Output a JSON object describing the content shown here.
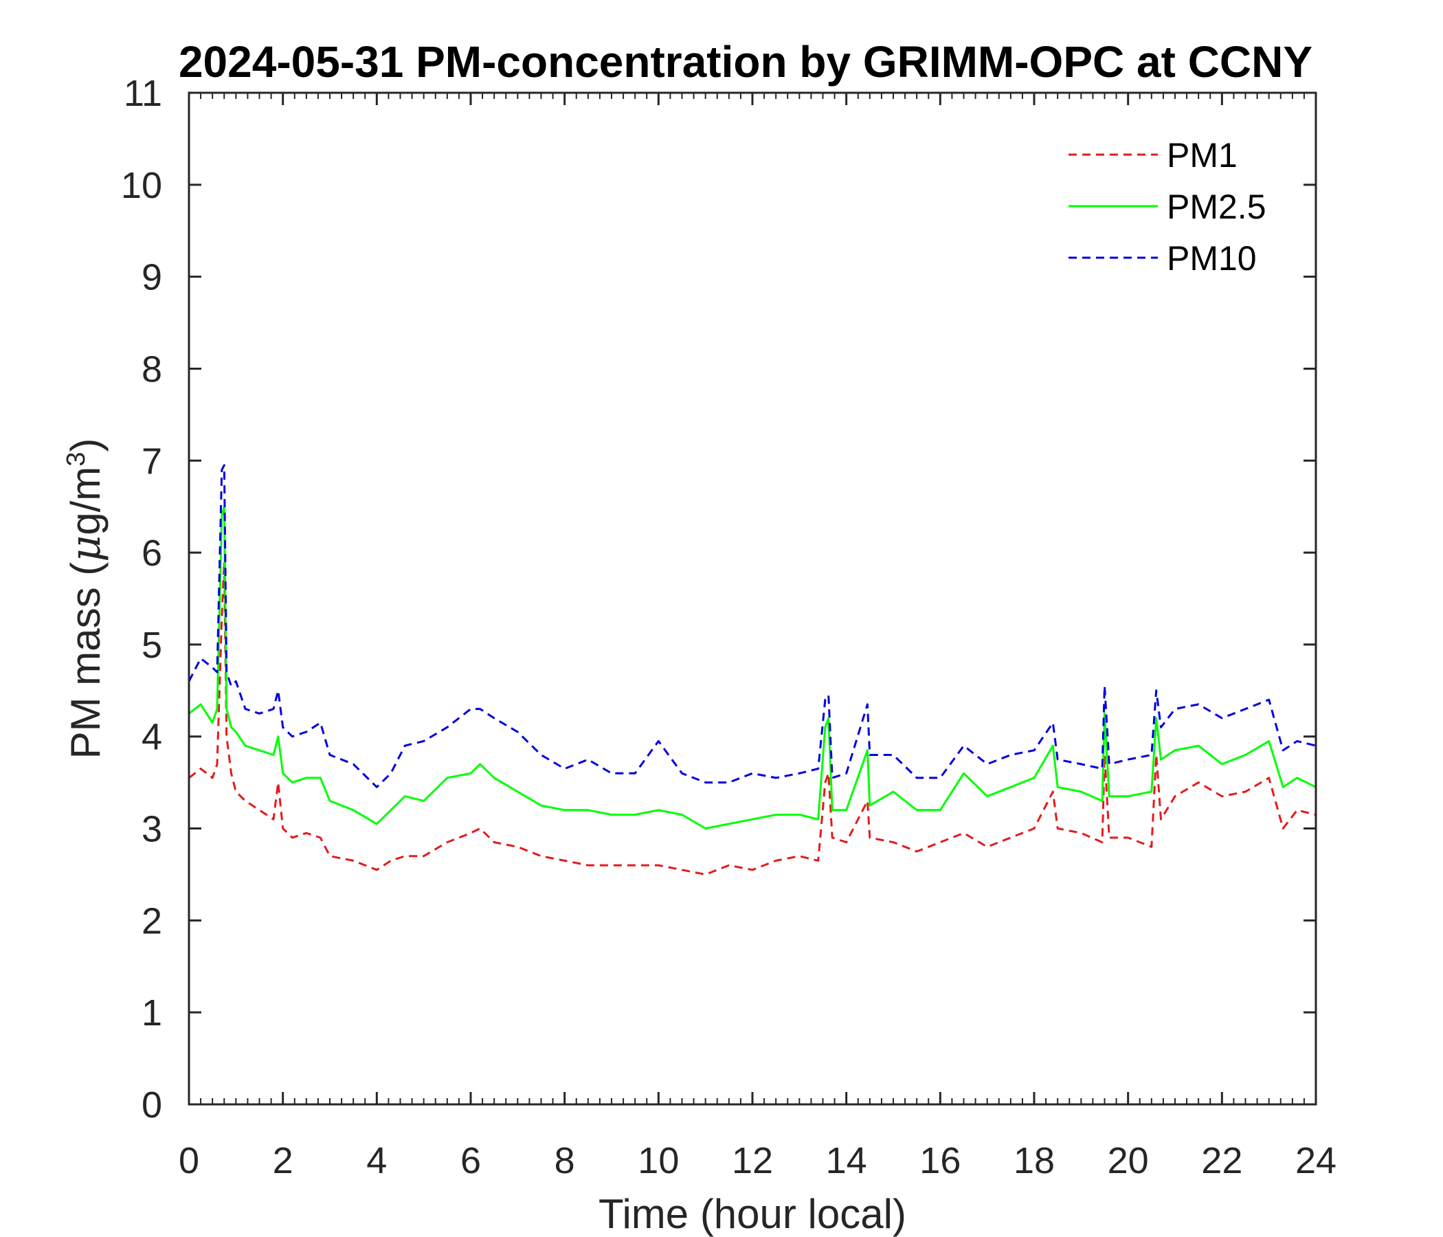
{
  "chart_data": {
    "type": "line",
    "title": "2024-05-31 PM-concentration by GRIMM-OPC at CCNY",
    "xlabel": "Time (hour local)",
    "ylabel_main": "PM mass (",
    "ylabel_mu": "μ",
    "ylabel_unit": "g/m",
    "ylabel_sup": "3",
    "ylabel_close": ")",
    "xlim": [
      0,
      24
    ],
    "ylim": [
      0,
      11
    ],
    "xticks": [
      "0",
      "2",
      "4",
      "6",
      "8",
      "10",
      "12",
      "14",
      "16",
      "18",
      "20",
      "22",
      "24"
    ],
    "yticks": [
      "0",
      "1",
      "2",
      "3",
      "4",
      "5",
      "6",
      "7",
      "8",
      "9",
      "10",
      "11"
    ],
    "grid": false,
    "legend_position": "top-right",
    "series": [
      {
        "name": "PM1",
        "color": "#e31a1c",
        "style": "dashed",
        "x": [
          0.0,
          0.25,
          0.5,
          0.6,
          0.7,
          0.75,
          0.8,
          0.9,
          1.0,
          1.2,
          1.5,
          1.8,
          1.9,
          2.0,
          2.2,
          2.5,
          2.8,
          3.0,
          3.5,
          4.0,
          4.3,
          4.6,
          5.0,
          5.5,
          6.0,
          6.2,
          6.5,
          7.0,
          7.5,
          8.0,
          8.5,
          9.0,
          9.5,
          10.0,
          10.5,
          11.0,
          11.5,
          12.0,
          12.5,
          13.0,
          13.4,
          13.55,
          13.62,
          13.7,
          14.0,
          14.45,
          14.5,
          15.0,
          15.5,
          16.0,
          16.5,
          17.0,
          17.5,
          18.0,
          18.4,
          18.5,
          19.0,
          19.45,
          19.5,
          19.6,
          20.0,
          20.5,
          20.6,
          20.7,
          21.0,
          21.5,
          22.0,
          22.5,
          23.0,
          23.3,
          23.6,
          24.0
        ],
        "y": [
          3.55,
          3.65,
          3.55,
          3.7,
          5.3,
          5.9,
          4.0,
          3.6,
          3.4,
          3.3,
          3.2,
          3.1,
          3.5,
          3.0,
          2.9,
          2.95,
          2.9,
          2.7,
          2.65,
          2.55,
          2.65,
          2.7,
          2.7,
          2.85,
          2.95,
          3.0,
          2.85,
          2.8,
          2.7,
          2.65,
          2.6,
          2.6,
          2.6,
          2.6,
          2.55,
          2.5,
          2.6,
          2.55,
          2.65,
          2.7,
          2.65,
          3.5,
          3.6,
          2.9,
          2.85,
          3.3,
          2.9,
          2.85,
          2.75,
          2.85,
          2.95,
          2.8,
          2.9,
          3.0,
          3.4,
          3.0,
          2.95,
          2.85,
          3.8,
          2.9,
          2.9,
          2.8,
          3.8,
          3.1,
          3.35,
          3.5,
          3.35,
          3.4,
          3.55,
          3.0,
          3.2,
          3.15
        ]
      },
      {
        "name": "PM2.5",
        "color": "#00ff00",
        "style": "solid",
        "x": [
          0.0,
          0.25,
          0.5,
          0.6,
          0.7,
          0.75,
          0.8,
          0.9,
          1.0,
          1.2,
          1.5,
          1.8,
          1.9,
          2.0,
          2.2,
          2.5,
          2.8,
          3.0,
          3.5,
          4.0,
          4.3,
          4.6,
          5.0,
          5.5,
          6.0,
          6.2,
          6.5,
          7.0,
          7.5,
          8.0,
          8.5,
          9.0,
          9.5,
          10.0,
          10.5,
          11.0,
          11.5,
          12.0,
          12.5,
          13.0,
          13.4,
          13.55,
          13.62,
          13.7,
          14.0,
          14.45,
          14.5,
          15.0,
          15.5,
          16.0,
          16.5,
          17.0,
          17.5,
          18.0,
          18.4,
          18.5,
          19.0,
          19.45,
          19.5,
          19.6,
          20.0,
          20.5,
          20.6,
          20.7,
          21.0,
          21.5,
          22.0,
          22.5,
          23.0,
          23.3,
          23.6,
          24.0
        ],
        "y": [
          4.25,
          4.35,
          4.15,
          4.3,
          6.4,
          6.5,
          4.3,
          4.1,
          4.05,
          3.9,
          3.85,
          3.8,
          4.0,
          3.6,
          3.5,
          3.55,
          3.55,
          3.3,
          3.2,
          3.05,
          3.2,
          3.35,
          3.3,
          3.55,
          3.6,
          3.7,
          3.55,
          3.4,
          3.25,
          3.2,
          3.2,
          3.15,
          3.15,
          3.2,
          3.15,
          3.0,
          3.05,
          3.1,
          3.15,
          3.15,
          3.1,
          4.1,
          4.2,
          3.2,
          3.2,
          3.85,
          3.25,
          3.4,
          3.2,
          3.2,
          3.6,
          3.35,
          3.45,
          3.55,
          3.9,
          3.45,
          3.4,
          3.3,
          4.25,
          3.35,
          3.35,
          3.4,
          4.2,
          3.75,
          3.85,
          3.9,
          3.7,
          3.8,
          3.95,
          3.45,
          3.55,
          3.45
        ]
      },
      {
        "name": "PM10",
        "color": "#0000e0",
        "style": "dashed",
        "x": [
          0.0,
          0.25,
          0.5,
          0.6,
          0.7,
          0.75,
          0.8,
          0.9,
          1.0,
          1.2,
          1.5,
          1.8,
          1.9,
          2.0,
          2.2,
          2.5,
          2.8,
          3.0,
          3.5,
          4.0,
          4.3,
          4.6,
          5.0,
          5.5,
          6.0,
          6.2,
          6.5,
          7.0,
          7.5,
          8.0,
          8.5,
          9.0,
          9.5,
          10.0,
          10.5,
          11.0,
          11.5,
          12.0,
          12.5,
          13.0,
          13.4,
          13.55,
          13.62,
          13.7,
          14.0,
          14.45,
          14.5,
          15.0,
          15.5,
          16.0,
          16.5,
          17.0,
          17.5,
          18.0,
          18.4,
          18.5,
          19.0,
          19.45,
          19.5,
          19.6,
          20.0,
          20.5,
          20.6,
          20.7,
          21.0,
          21.5,
          22.0,
          22.5,
          23.0,
          23.3,
          23.6,
          24.0
        ],
        "y": [
          4.6,
          4.85,
          4.75,
          4.7,
          6.9,
          6.95,
          4.7,
          4.55,
          4.6,
          4.3,
          4.25,
          4.3,
          4.5,
          4.1,
          4.0,
          4.05,
          4.15,
          3.8,
          3.7,
          3.45,
          3.6,
          3.9,
          3.95,
          4.1,
          4.3,
          4.3,
          4.2,
          4.05,
          3.8,
          3.65,
          3.75,
          3.6,
          3.6,
          3.95,
          3.6,
          3.5,
          3.5,
          3.6,
          3.55,
          3.6,
          3.65,
          4.4,
          4.45,
          3.55,
          3.6,
          4.35,
          3.8,
          3.8,
          3.55,
          3.55,
          3.9,
          3.7,
          3.8,
          3.85,
          4.15,
          3.75,
          3.7,
          3.65,
          4.55,
          3.7,
          3.75,
          3.8,
          4.5,
          4.1,
          4.3,
          4.35,
          4.2,
          4.3,
          4.4,
          3.85,
          3.95,
          3.9
        ]
      }
    ]
  }
}
